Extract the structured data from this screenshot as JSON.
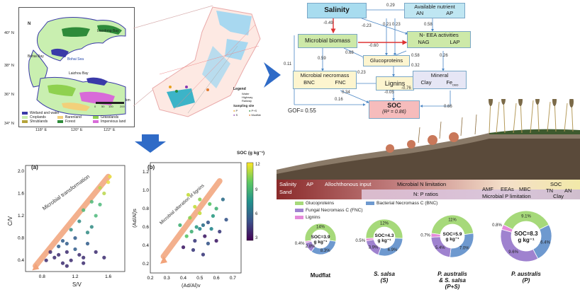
{
  "map": {
    "lat_labels": [
      "40° N",
      "38° N",
      "36° N",
      "34° N"
    ],
    "lon_labels": [
      "118° E",
      "120° E",
      "122° E"
    ],
    "place_labels": [
      "Liaodong Bay",
      "Bohai Bay",
      "Bohai Sea",
      "Laizhou Bay"
    ],
    "scale_label": "km",
    "scale_ticks": [
      "0",
      "50",
      "100",
      "200"
    ],
    "north": "N",
    "legend": [
      {
        "label": "Wetland and water",
        "color": "#3a3aa8"
      },
      {
        "label": "Barenland",
        "color": "#f2d07a"
      },
      {
        "label": "Grasslands",
        "color": "#8fd14f"
      },
      {
        "label": "Croplands",
        "color": "#c9efb0"
      },
      {
        "label": "Shrublands",
        "color": "#b5a33a"
      },
      {
        "label": "Forest",
        "color": "#2e8b3a"
      },
      {
        "label": "Impervious land",
        "color": "#d86bd8"
      }
    ]
  },
  "inset": {
    "legend_title": "Legend",
    "legend_items": [
      "Water",
      "Highway",
      "Railway"
    ],
    "sampling_title": "Sampling site",
    "sites": [
      {
        "label": "P",
        "color": "#e8a21e"
      },
      {
        "label": "P+S",
        "color": "#2a8a3a"
      },
      {
        "label": "S",
        "color": "#8b3ab0"
      },
      {
        "label": "Mudflat",
        "color": "#e07a30"
      }
    ]
  },
  "pathway": {
    "salinity": "Salinity",
    "nutrient_title": "Available nutrient",
    "nutrient_a": "AN",
    "nutrient_b": "AP",
    "mb": "Microbial biomass",
    "eea_title": "N- EEA activities",
    "eea_a": "NAG",
    "eea_b": "LAP",
    "gluco": "Glucoproteins",
    "necro_title": "Microbial necromass",
    "necro_a": "BNC",
    "necro_b": "FNC",
    "lignins": "Lignins",
    "mineral_title": "Mineral",
    "mineral_a": "Clay",
    "mineral_b": "Fe",
    "mineral_b_sub": "DBD",
    "soc": "SOC",
    "soc_r2": "(R² = 0.86)",
    "gof": "GOF= 0.55",
    "coefs": [
      "0.29",
      "-0.49",
      "-0.23",
      "0.21",
      "0.23",
      "0.58",
      "-0.60",
      "0.68",
      "0.58",
      "0.26",
      "0.59",
      "0.32",
      "0.11",
      "0.23",
      "-0.76",
      "-0.05",
      "0.34",
      "0.16",
      "0.66"
    ]
  },
  "scatter_a": {
    "tag": "(a)",
    "xlabel": "S/V",
    "ylabel": "C/V",
    "arrow_label": "Microbial transformation",
    "xticks": [
      "0.8",
      "1.2",
      "1.6"
    ],
    "yticks": [
      "0.4",
      "0.8",
      "1.2",
      "1.6",
      "2.0"
    ]
  },
  "scatter_b": {
    "tag": "(b)",
    "xlabel": "(Ad/Al)v",
    "ylabel": "(Ad/Al)s",
    "arrow_label": "Microbial alteration of lignins",
    "xticks": [
      "0.2",
      "0.3",
      "0.4",
      "0.5",
      "0.6",
      "0.7"
    ],
    "yticks": [
      "0.2",
      "0.4",
      "0.6",
      "0.8",
      "1.0",
      "1.2"
    ],
    "cbar_title": "SOC (g kg⁻¹)",
    "cbar_ticks": [
      "12",
      "9",
      "6",
      "3"
    ]
  },
  "gradient": {
    "row1": [
      "Salinity",
      "AP",
      "Allochthonous input",
      "Microbial N limitation",
      "SOC"
    ],
    "row2": [
      "Sand",
      "N: P ratios",
      "AMF",
      "EEAs",
      "MBC",
      "TN",
      "AN"
    ],
    "row3": [
      "Microbial P limitation",
      "Clay"
    ]
  },
  "donut_legend": [
    {
      "label": "Glucoproteins",
      "color": "#a6d97a"
    },
    {
      "label": "Bacterial Necromass C (BNC)",
      "color": "#6e99cf"
    },
    {
      "label": "Fungal Necromass C (FNC)",
      "color": "#9f82cf"
    },
    {
      "label": "Lignins",
      "color": "#e48ad9"
    }
  ],
  "donuts": [
    {
      "name": "Mudflat",
      "center": "SOC=3.9\ng kg⁻¹",
      "vals": [
        14,
        8.3,
        2.8,
        0.4
      ],
      "labels": [
        "14%",
        "8.3%",
        "2.8%",
        "0.4%"
      ]
    },
    {
      "name": "S. salsa\n(S)",
      "center": "SOC=4.3\ng kg⁻¹",
      "vals": [
        12,
        6.9,
        3.9,
        0.5
      ],
      "labels": [
        "12%",
        "6.9%",
        "3.9%",
        "0.5%"
      ]
    },
    {
      "name": "P. australis\n& S. salsa\n(P+S)",
      "center": "SOC=5.9\ng kg⁻¹",
      "vals": [
        11,
        7.0,
        5.4,
        0.7
      ],
      "labels": [
        "11%",
        "7.0%",
        "5.4%",
        "0.7%"
      ]
    },
    {
      "name": "P. australis\n(P)",
      "center": "SOC=8.3\ng kg⁻¹",
      "vals": [
        9.1,
        6.4,
        9.6,
        0.8
      ],
      "labels": [
        "9.1%",
        "6.4%",
        "9.6%",
        "0.8%"
      ]
    }
  ]
}
